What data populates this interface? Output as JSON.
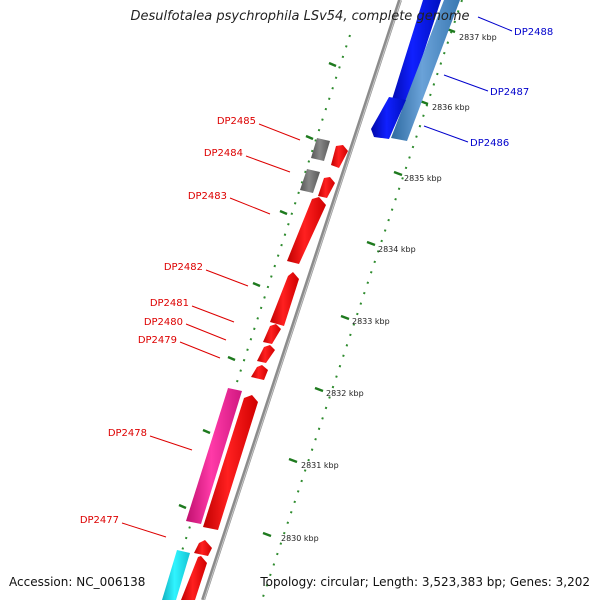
{
  "title": "Desulfotalea psychrophila LSv54, complete genome",
  "footer": {
    "accession": "Accession: NC_006138",
    "topology": "Topology: circular; Length: 3,523,383 bp; Genes: 3,202"
  },
  "colors": {
    "backbone": "#8c8c8c",
    "grid": "#2e8b2e",
    "label_left": "#dd0000",
    "label_right": "#0000cc",
    "red_gene": "#ff1010",
    "magenta_gene": "#ff2aa0",
    "cyan_gene": "#1ee8f0",
    "gray_gene": "#777777",
    "blue_gene": "#0a14e6",
    "steel_gene": "#4a86c0"
  },
  "ticks": [
    {
      "label": "2837 kbp"
    },
    {
      "label": "2836 kbp"
    },
    {
      "label": "2835 kbp"
    },
    {
      "label": "2834 kbp"
    },
    {
      "label": "2833 kbp"
    },
    {
      "label": "2832 kbp"
    },
    {
      "label": "2831 kbp"
    },
    {
      "label": "2830 kbp"
    }
  ],
  "genes": [
    {
      "label": "DP2488",
      "side": "right"
    },
    {
      "label": "DP2487",
      "side": "right"
    },
    {
      "label": "DP2486",
      "side": "right"
    },
    {
      "label": "DP2485",
      "side": "left"
    },
    {
      "label": "DP2484",
      "side": "left"
    },
    {
      "label": "DP2483",
      "side": "left"
    },
    {
      "label": "DP2482",
      "side": "left"
    },
    {
      "label": "DP2481",
      "side": "left"
    },
    {
      "label": "DP2480",
      "side": "left"
    },
    {
      "label": "DP2479",
      "side": "left"
    },
    {
      "label": "DP2478",
      "side": "left"
    },
    {
      "label": "DP2477",
      "side": "left"
    }
  ]
}
